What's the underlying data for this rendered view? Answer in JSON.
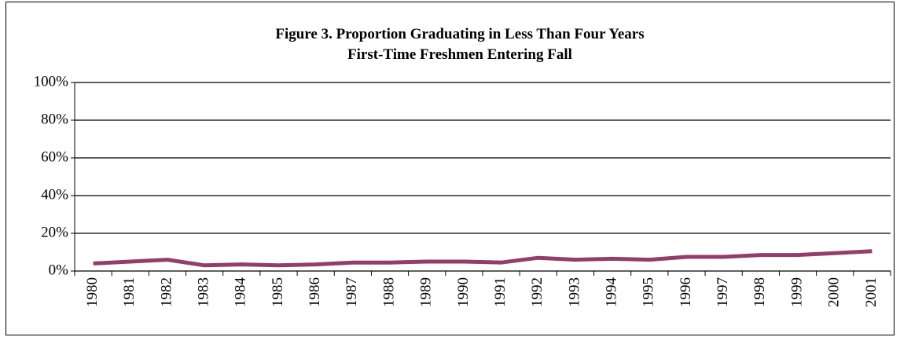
{
  "chart_data": {
    "type": "line",
    "title": "Figure 3. Proportion Graduating in Less Than Four Years",
    "subtitle": "First-Time Freshmen Entering Fall",
    "categories": [
      "1980",
      "1981",
      "1982",
      "1983",
      "1984",
      "1985",
      "1986",
      "1987",
      "1988",
      "1989",
      "1990",
      "1991",
      "1992",
      "1993",
      "1994",
      "1995",
      "1996",
      "1997",
      "1998",
      "1999",
      "2000",
      "2001"
    ],
    "series": [
      {
        "name": "Proportion graduating in less than four years",
        "color": "#943d6b",
        "values": [
          4,
          5,
          6,
          3,
          3.5,
          3,
          3.5,
          4.5,
          4.5,
          5,
          5,
          4.5,
          7,
          6,
          6.5,
          6,
          7.5,
          7.5,
          8.5,
          8.5,
          9.5,
          10.5
        ]
      }
    ],
    "ylim": [
      0,
      100
    ],
    "yticks": [
      {
        "value": 0,
        "label": "0%"
      },
      {
        "value": 20,
        "label": "20%"
      },
      {
        "value": 40,
        "label": "40%"
      },
      {
        "value": 60,
        "label": "60%"
      },
      {
        "value": 80,
        "label": "80%"
      },
      {
        "value": 100,
        "label": "100%"
      }
    ],
    "grid": true
  }
}
